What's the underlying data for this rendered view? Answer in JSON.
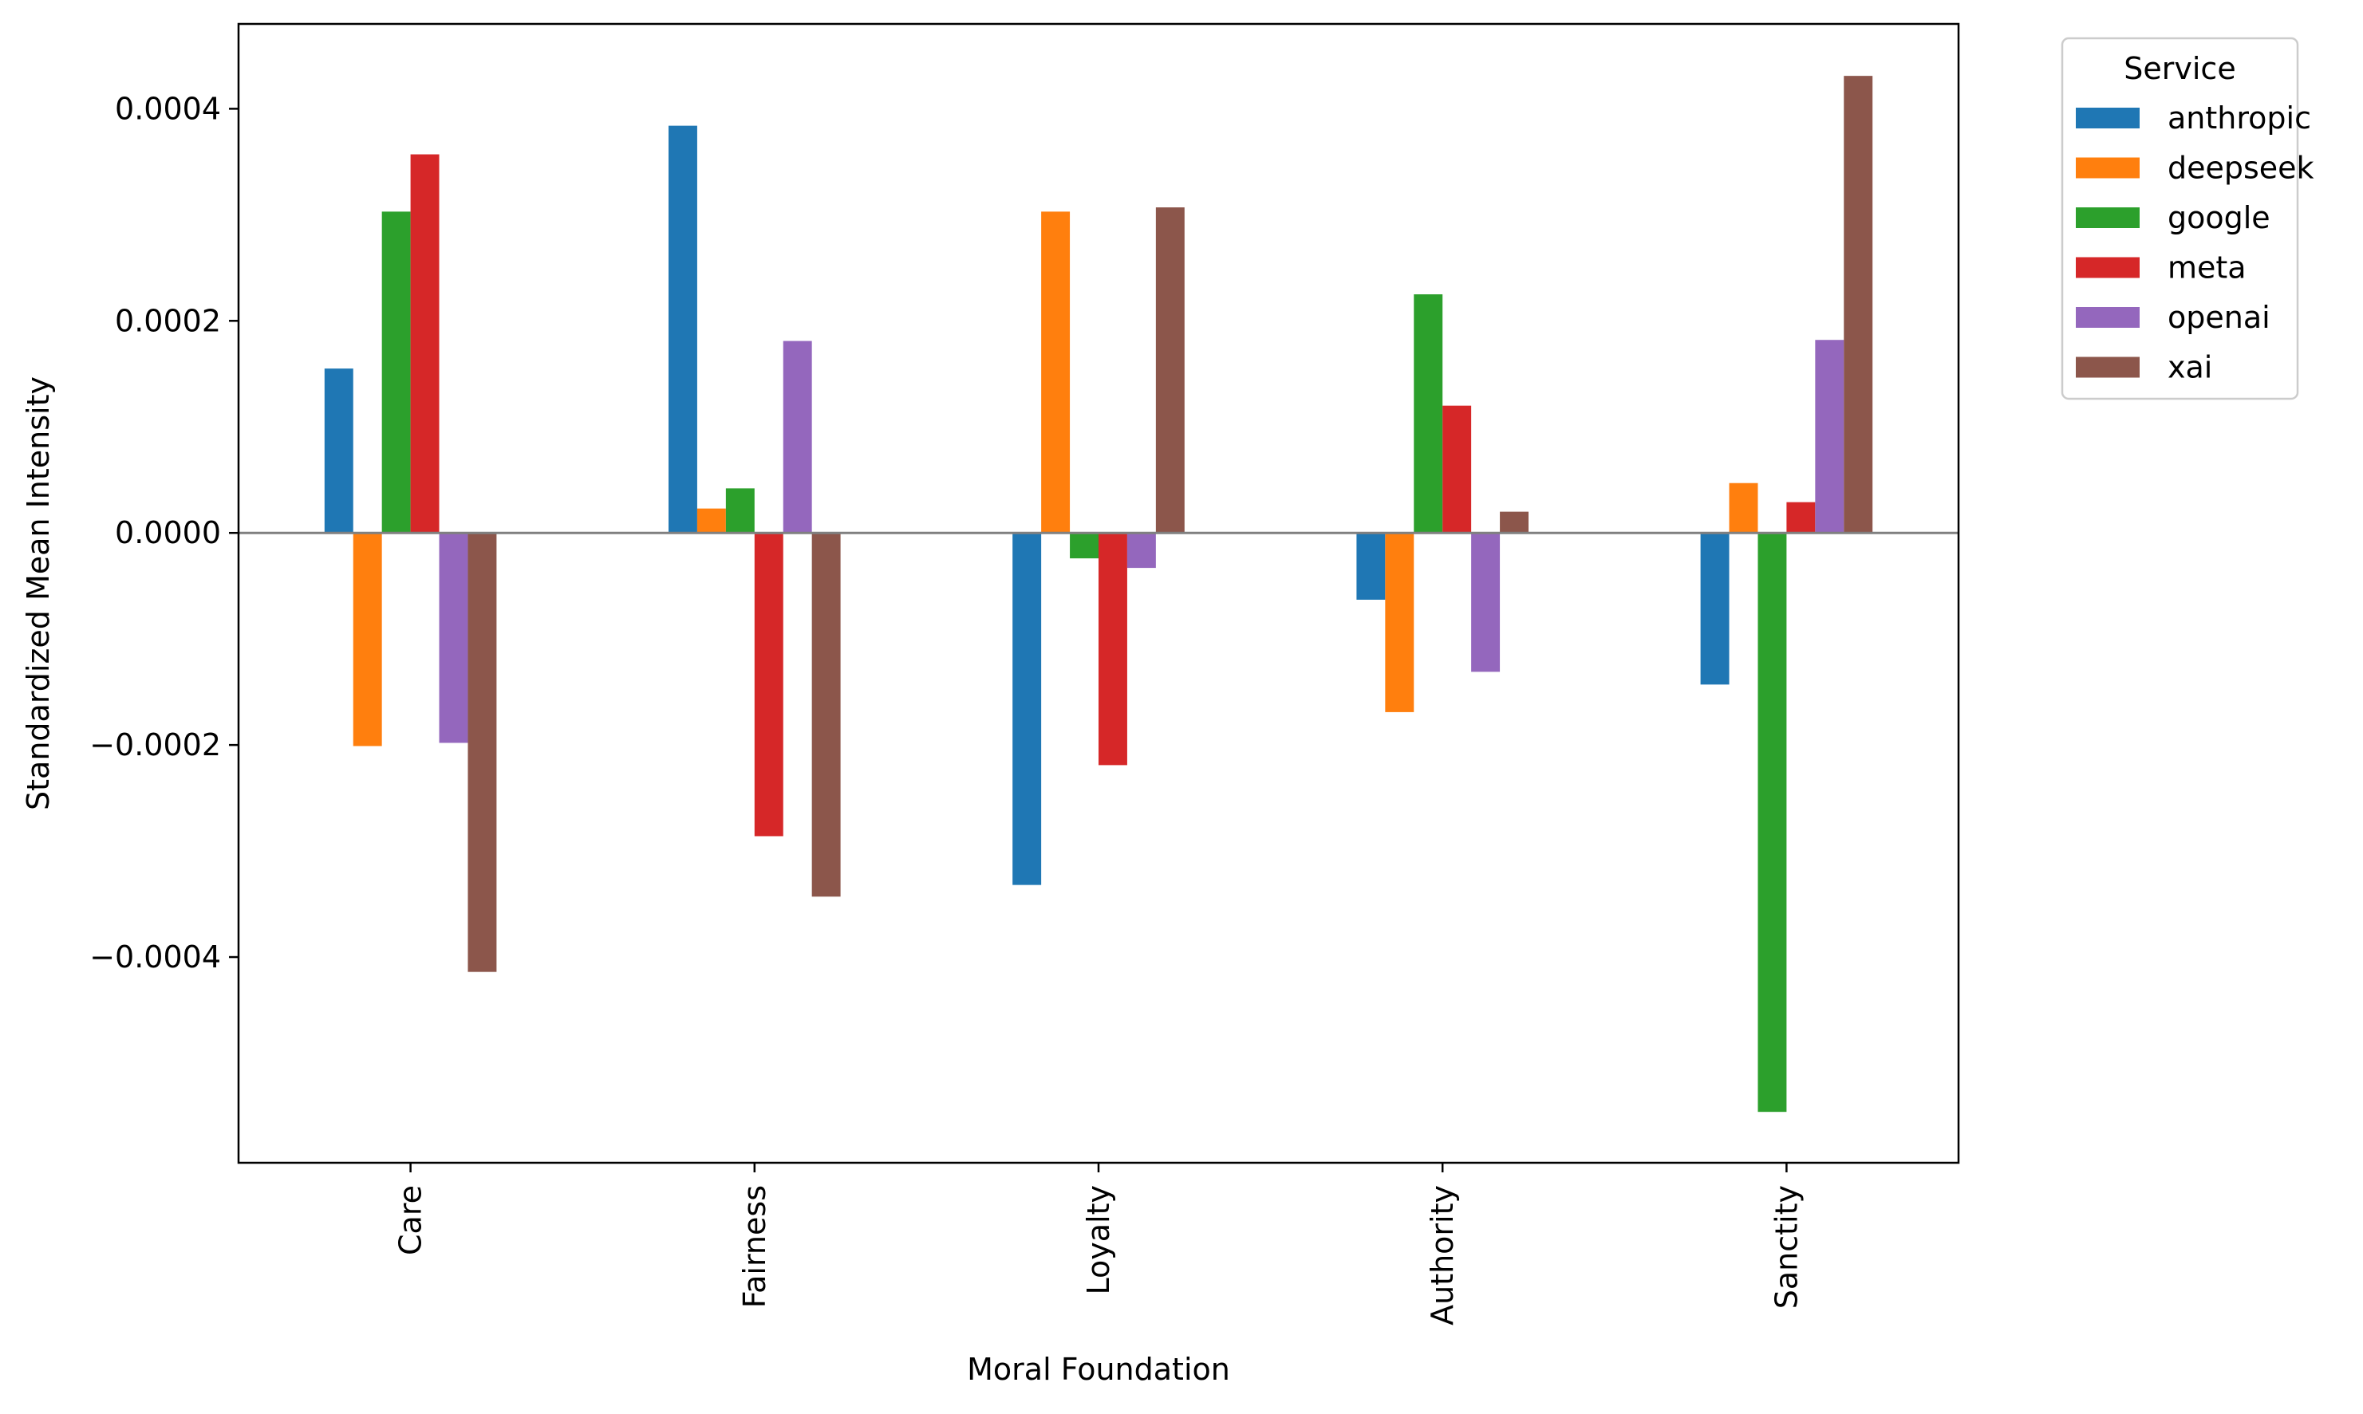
{
  "chart_data": {
    "type": "bar",
    "title": "",
    "xlabel": "Moral Foundation",
    "ylabel": "Standardized Mean Intensity",
    "categories": [
      "Care",
      "Fairness",
      "Loyalty",
      "Authority",
      "Sanctity"
    ],
    "series": [
      {
        "name": "anthropic",
        "color": "#1f77b4",
        "values": [
          0.000155,
          0.000384,
          -0.000332,
          -6.3e-05,
          -0.000143
        ]
      },
      {
        "name": "deepseek",
        "color": "#ff7f0e",
        "values": [
          -0.000201,
          2.3e-05,
          0.000303,
          -0.000169,
          4.7e-05
        ]
      },
      {
        "name": "google",
        "color": "#2ca02c",
        "values": [
          0.000303,
          4.2e-05,
          -2.4e-05,
          0.000225,
          -0.000546
        ]
      },
      {
        "name": "meta",
        "color": "#d62728",
        "values": [
          0.000357,
          -0.000286,
          -0.000219,
          0.00012,
          2.9e-05
        ]
      },
      {
        "name": "openai",
        "color": "#9467bd",
        "values": [
          -0.000198,
          0.000181,
          -3.3e-05,
          -0.000131,
          0.000182
        ]
      },
      {
        "name": "xai",
        "color": "#8c564b",
        "values": [
          -0.000414,
          -0.000343,
          0.000307,
          2e-05,
          0.000431
        ]
      }
    ],
    "ylim": [
      -0.000594,
      0.00048
    ],
    "yticks": [
      0.0004,
      0.0002,
      0.0,
      -0.0002,
      -0.0004
    ],
    "ytick_labels": [
      "0.0004",
      "0.0002",
      "0.0000",
      "−0.0002",
      "−0.0004"
    ],
    "legend": {
      "title": "Service",
      "placement": "outside-top-right"
    },
    "grid": false,
    "zero_line": true
  }
}
